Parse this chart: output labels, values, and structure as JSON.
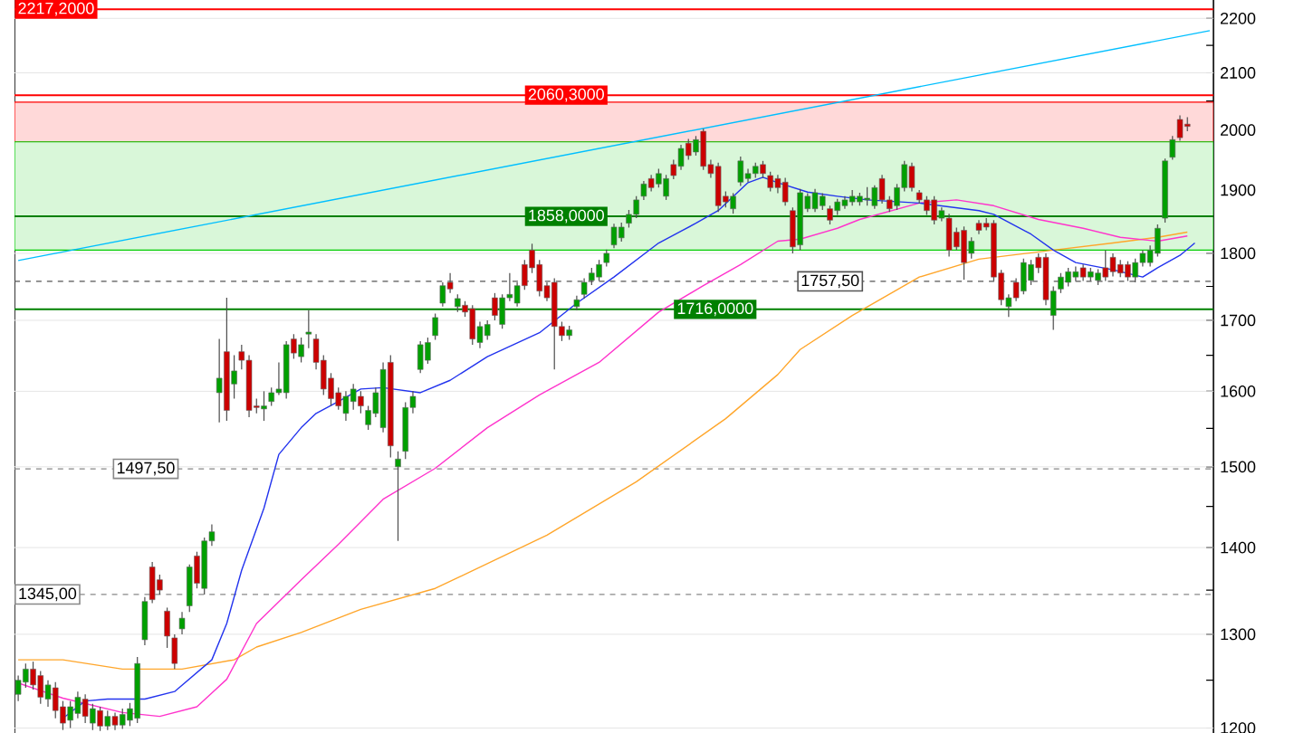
{
  "chart_data": {
    "type": "candlestick",
    "categories": [
      null,
      null,
      null,
      null,
      null,
      null,
      null,
      null,
      null,
      null,
      null,
      null,
      null,
      null,
      null,
      null,
      null,
      null,
      null,
      null,
      null,
      null,
      null,
      null,
      null,
      null,
      null,
      null,
      null,
      null,
      null,
      null,
      null,
      null,
      null,
      null,
      null,
      null,
      null,
      null,
      null,
      null,
      null,
      null,
      null,
      null,
      null,
      null,
      null,
      null,
      null,
      null,
      null,
      null,
      null,
      null,
      null,
      null,
      null,
      null,
      null,
      null,
      null,
      null,
      null,
      null,
      null,
      null,
      null,
      null,
      null,
      null,
      null,
      null,
      null,
      null,
      null,
      null,
      null,
      null,
      null,
      null,
      null,
      null,
      null,
      null,
      null,
      null,
      null,
      null,
      null,
      null,
      null,
      null,
      null,
      null,
      null,
      null,
      null,
      null,
      null,
      null,
      null,
      null,
      null,
      null,
      null,
      null,
      null,
      null,
      null,
      null,
      null,
      null,
      null,
      null,
      null,
      null,
      null,
      null,
      null,
      null,
      null,
      null,
      null,
      null,
      null,
      null,
      null,
      null,
      null,
      null,
      null,
      null,
      null,
      null,
      null,
      null,
      null,
      null,
      null,
      null,
      null,
      null,
      null,
      null,
      null,
      null,
      null,
      null,
      null,
      null,
      null,
      null,
      null,
      null,
      null,
      null,
      null,
      null,
      null
    ],
    "ohlc": [
      [
        1235,
        1255,
        1228,
        1250
      ],
      [
        1248,
        1268,
        1242,
        1262
      ],
      [
        1262,
        1270,
        1240,
        1245
      ],
      [
        1255,
        1260,
        1225,
        1232
      ],
      [
        1230,
        1250,
        1222,
        1245
      ],
      [
        1242,
        1248,
        1210,
        1218
      ],
      [
        1222,
        1228,
        1198,
        1205
      ],
      [
        1208,
        1228,
        1200,
        1222
      ],
      [
        1215,
        1238,
        1210,
        1232
      ],
      [
        1230,
        1235,
        1205,
        1212
      ],
      [
        1205,
        1225,
        1198,
        1220
      ],
      [
        1218,
        1222,
        1197,
        1202
      ],
      [
        1202,
        1218,
        1198,
        1212
      ],
      [
        1212,
        1216,
        1198,
        1203
      ],
      [
        1203,
        1220,
        1199,
        1214
      ],
      [
        1208,
        1226,
        1202,
        1220
      ],
      [
        1210,
        1275,
        1205,
        1268
      ],
      [
        1294,
        1342,
        1288,
        1337
      ],
      [
        1377,
        1383,
        1335,
        1339
      ],
      [
        1362,
        1368,
        1345,
        1350
      ],
      [
        1326,
        1330,
        1285,
        1298
      ],
      [
        1296,
        1300,
        1262,
        1268
      ],
      [
        1306,
        1325,
        1300,
        1318
      ],
      [
        1332,
        1380,
        1325,
        1377
      ],
      [
        1390,
        1395,
        1352,
        1358
      ],
      [
        1352,
        1412,
        1345,
        1408
      ],
      [
        1408,
        1428,
        1402,
        1419
      ],
      [
        1598,
        1673,
        1558,
        1618
      ],
      [
        1655,
        1733,
        1560,
        1574
      ],
      [
        1610,
        1650,
        1590,
        1628
      ],
      [
        1655,
        1665,
        1630,
        1643
      ],
      [
        1643,
        1650,
        1565,
        1574
      ],
      [
        1580,
        1590,
        1570,
        1578
      ],
      [
        1576,
        1600,
        1560,
        1580
      ],
      [
        1586,
        1605,
        1580,
        1598
      ],
      [
        1598,
        1640,
        1595,
        1603
      ],
      [
        1598,
        1670,
        1590,
        1665
      ],
      [
        1673,
        1680,
        1645,
        1653
      ],
      [
        1648,
        1675,
        1640,
        1665
      ],
      [
        1680,
        1715,
        1660,
        1683
      ],
      [
        1673,
        1680,
        1630,
        1640
      ],
      [
        1643,
        1650,
        1595,
        1603
      ],
      [
        1618,
        1625,
        1580,
        1590
      ],
      [
        1598,
        1605,
        1575,
        1580
      ],
      [
        1570,
        1600,
        1560,
        1593
      ],
      [
        1586,
        1610,
        1575,
        1603
      ],
      [
        1593,
        1600,
        1570,
        1580
      ],
      [
        1555,
        1580,
        1548,
        1574
      ],
      [
        1570,
        1605,
        1565,
        1598
      ],
      [
        1551,
        1640,
        1545,
        1630
      ],
      [
        1640,
        1650,
        1512,
        1527
      ],
      [
        1500,
        1520,
        1408,
        1510
      ],
      [
        1520,
        1585,
        1510,
        1578
      ],
      [
        1578,
        1600,
        1570,
        1593
      ],
      [
        1630,
        1670,
        1625,
        1665
      ],
      [
        1643,
        1675,
        1638,
        1668
      ],
      [
        1678,
        1710,
        1672,
        1704
      ],
      [
        1725,
        1756,
        1720,
        1751
      ],
      [
        1756,
        1770,
        1740,
        1746
      ],
      [
        1720,
        1738,
        1712,
        1732
      ],
      [
        1722,
        1728,
        1705,
        1712
      ],
      [
        1717,
        1722,
        1665,
        1673
      ],
      [
        1668,
        1698,
        1660,
        1691
      ],
      [
        1678,
        1700,
        1672,
        1694
      ],
      [
        1733,
        1740,
        1700,
        1707
      ],
      [
        1694,
        1738,
        1688,
        1733
      ],
      [
        1733,
        1770,
        1728,
        1738
      ],
      [
        1725,
        1756,
        1720,
        1751
      ],
      [
        1783,
        1790,
        1745,
        1751
      ],
      [
        1805,
        1815,
        1770,
        1778
      ],
      [
        1783,
        1790,
        1735,
        1743
      ],
      [
        1751,
        1756,
        1728,
        1733
      ],
      [
        1756,
        1762,
        1630,
        1691
      ],
      [
        1691,
        1698,
        1670,
        1678
      ],
      [
        1678,
        1692,
        1672,
        1686
      ],
      [
        1720,
        1736,
        1715,
        1730
      ],
      [
        1738,
        1762,
        1732,
        1756
      ],
      [
        1759,
        1778,
        1752,
        1770
      ],
      [
        1764,
        1790,
        1758,
        1783
      ],
      [
        1786,
        1806,
        1780,
        1800
      ],
      [
        1813,
        1846,
        1808,
        1841
      ],
      [
        1824,
        1848,
        1818,
        1841
      ],
      [
        1847,
        1868,
        1840,
        1861
      ],
      [
        1861,
        1890,
        1855,
        1884
      ],
      [
        1890,
        1915,
        1884,
        1910
      ],
      [
        1919,
        1925,
        1898,
        1904
      ],
      [
        1910,
        1935,
        1904,
        1927
      ],
      [
        1890,
        1925,
        1884,
        1919
      ],
      [
        1942,
        1950,
        1918,
        1924
      ],
      [
        1939,
        1975,
        1933,
        1969
      ],
      [
        1978,
        1985,
        1950,
        1957
      ],
      [
        1963,
        1990,
        1957,
        1984
      ],
      [
        1998,
        2002,
        1933,
        1939
      ],
      [
        1942,
        1950,
        1920,
        1927
      ],
      [
        1939,
        1945,
        1865,
        1875
      ],
      [
        1890,
        1898,
        1872,
        1881
      ],
      [
        1870,
        1895,
        1862,
        1890
      ],
      [
        1913,
        1955,
        1907,
        1948
      ],
      [
        1919,
        1935,
        1913,
        1927
      ],
      [
        1927,
        1945,
        1920,
        1939
      ],
      [
        1942,
        1948,
        1920,
        1927
      ],
      [
        1924,
        1930,
        1898,
        1904
      ],
      [
        1919,
        1925,
        1895,
        1904
      ],
      [
        1913,
        1920,
        1875,
        1881
      ],
      [
        1867,
        1872,
        1800,
        1810
      ],
      [
        1813,
        1902,
        1805,
        1896
      ],
      [
        1870,
        1895,
        1865,
        1890
      ],
      [
        1870,
        1902,
        1865,
        1896
      ],
      [
        1875,
        1895,
        1868,
        1890
      ],
      [
        1870,
        1875,
        1845,
        1852
      ],
      [
        1867,
        1886,
        1860,
        1881
      ],
      [
        1875,
        1890,
        1870,
        1884
      ],
      [
        1881,
        1900,
        1875,
        1890
      ],
      [
        1881,
        1896,
        1875,
        1890
      ],
      [
        1884,
        1905,
        1875,
        1887
      ],
      [
        1875,
        1908,
        1870,
        1904
      ],
      [
        1919,
        1925,
        1878,
        1884
      ],
      [
        1884,
        1890,
        1865,
        1870
      ],
      [
        1875,
        1910,
        1868,
        1904
      ],
      [
        1904,
        1948,
        1898,
        1942
      ],
      [
        1939,
        1945,
        1898,
        1904
      ],
      [
        1896,
        1900,
        1878,
        1884
      ],
      [
        1884,
        1890,
        1860,
        1867
      ],
      [
        1884,
        1890,
        1845,
        1852
      ],
      [
        1855,
        1872,
        1850,
        1867
      ],
      [
        1855,
        1862,
        1795,
        1805
      ],
      [
        1833,
        1840,
        1805,
        1810
      ],
      [
        1836,
        1842,
        1760,
        1786
      ],
      [
        1800,
        1825,
        1792,
        1819
      ],
      [
        1847,
        1852,
        1830,
        1836
      ],
      [
        1847,
        1855,
        1836,
        1841
      ],
      [
        1847,
        1852,
        1758,
        1764
      ],
      [
        1770,
        1775,
        1722,
        1730
      ],
      [
        1720,
        1738,
        1705,
        1733
      ],
      [
        1756,
        1762,
        1728,
        1733
      ],
      [
        1743,
        1792,
        1738,
        1786
      ],
      [
        1759,
        1790,
        1752,
        1783
      ],
      [
        1794,
        1800,
        1770,
        1778
      ],
      [
        1794,
        1800,
        1722,
        1730
      ],
      [
        1707,
        1750,
        1686,
        1743
      ],
      [
        1746,
        1770,
        1740,
        1764
      ],
      [
        1756,
        1778,
        1750,
        1772
      ],
      [
        1764,
        1780,
        1758,
        1772
      ],
      [
        1778,
        1783,
        1758,
        1764
      ],
      [
        1764,
        1778,
        1758,
        1772
      ],
      [
        1759,
        1776,
        1752,
        1770
      ],
      [
        1778,
        1805,
        1758,
        1764
      ],
      [
        1794,
        1800,
        1765,
        1772
      ],
      [
        1783,
        1790,
        1764,
        1770
      ],
      [
        1783,
        1788,
        1758,
        1764
      ],
      [
        1764,
        1792,
        1756,
        1786
      ],
      [
        1786,
        1805,
        1780,
        1800
      ],
      [
        1786,
        1812,
        1780,
        1805
      ],
      [
        1800,
        1845,
        1795,
        1839
      ],
      [
        1855,
        1952,
        1848,
        1948
      ],
      [
        1954,
        1990,
        1950,
        1984
      ],
      [
        2018,
        2025,
        1982,
        1987
      ],
      [
        2010,
        2022,
        1998,
        2006
      ],
      null,
      null,
      null
    ],
    "series": [
      {
        "type": "line",
        "color": "#00bfff",
        "values": [
          1789,
          null,
          null,
          null,
          null,
          null,
          null,
          null,
          null,
          null,
          null,
          null,
          null,
          null,
          null,
          null,
          null,
          null,
          null,
          null,
          null,
          null,
          null,
          null,
          null,
          null,
          null,
          null,
          null,
          null,
          null,
          null,
          null,
          null,
          null,
          null,
          null,
          null,
          null,
          null,
          null,
          null,
          null,
          null,
          null,
          null,
          null,
          null,
          null,
          null,
          null,
          null,
          null,
          null,
          null,
          null,
          null,
          null,
          null,
          null,
          null,
          null,
          null,
          null,
          null,
          null,
          null,
          null,
          null,
          null,
          null,
          null,
          null,
          null,
          null,
          null,
          null,
          null,
          null,
          null,
          null,
          null,
          null,
          null,
          null,
          null,
          null,
          null,
          null,
          null,
          null,
          null,
          null,
          null,
          null,
          null,
          null,
          null,
          null,
          null,
          null,
          null,
          null,
          null,
          null,
          null,
          null,
          null,
          null,
          null,
          null,
          null,
          null,
          null,
          null,
          null,
          null,
          null,
          null,
          null,
          null,
          null,
          null,
          null,
          null,
          null,
          null,
          null,
          null,
          null,
          null,
          null,
          null,
          null,
          null,
          null,
          null,
          null,
          null,
          null,
          null,
          null,
          null,
          null,
          null,
          null,
          null,
          null,
          null,
          null,
          null,
          null,
          null,
          null,
          null,
          null,
          null,
          null,
          null,
          null,
          2177
        ]
      },
      {
        "type": "line",
        "color": "#ffa62b",
        "values": [
          1272,
          null,
          null,
          null,
          null,
          null,
          1272,
          null,
          null,
          null,
          null,
          null,
          null,
          null,
          1262,
          null,
          null,
          null,
          null,
          null,
          null,
          null,
          1262,
          null,
          null,
          null,
          null,
          null,
          null,
          1272,
          null,
          null,
          1286,
          null,
          null,
          null,
          null,
          null,
          1302,
          null,
          null,
          null,
          null,
          null,
          null,
          null,
          1328,
          null,
          null,
          null,
          null,
          null,
          null,
          null,
          null,
          null,
          1352,
          null,
          null,
          null,
          null,
          null,
          null,
          null,
          null,
          null,
          null,
          null,
          null,
          null,
          null,
          1415,
          null,
          null,
          null,
          null,
          null,
          null,
          null,
          null,
          null,
          null,
          null,
          1481,
          null,
          null,
          null,
          null,
          null,
          null,
          null,
          null,
          null,
          null,
          null,
          1563,
          null,
          null,
          null,
          null,
          null,
          null,
          1623,
          null,
          null,
          1658,
          null,
          null,
          null,
          null,
          null,
          null,
          1707,
          null,
          null,
          null,
          null,
          null,
          null,
          null,
          null,
          1764,
          null,
          null,
          null,
          null,
          null,
          null,
          null,
          1791,
          null,
          null,
          null,
          null,
          null,
          null,
          null,
          null,
          null,
          1805,
          null,
          null,
          null,
          null,
          null,
          null,
          null,
          1816,
          null,
          null,
          null,
          null,
          null,
          1825,
          null,
          null,
          null,
          1833,
          null,
          null,
          null
        ]
      },
      {
        "type": "line",
        "color": "#ff33cc",
        "values": [
          1247,
          null,
          null,
          null,
          null,
          null,
          1231,
          null,
          null,
          null,
          null,
          null,
          null,
          null,
          1216,
          null,
          null,
          null,
          null,
          1212,
          null,
          null,
          null,
          null,
          1222,
          null,
          null,
          null,
          1251,
          null,
          null,
          null,
          1312,
          null,
          null,
          null,
          null,
          null,
          1362,
          null,
          null,
          null,
          null,
          1404,
          null,
          null,
          null,
          null,
          null,
          1459,
          null,
          null,
          null,
          null,
          null,
          null,
          1498,
          null,
          null,
          null,
          null,
          null,
          null,
          1551,
          null,
          null,
          null,
          null,
          null,
          null,
          1595,
          null,
          null,
          null,
          null,
          null,
          null,
          null,
          1640,
          null,
          null,
          null,
          null,
          null,
          null,
          null,
          1712,
          null,
          null,
          null,
          null,
          null,
          1751,
          null,
          null,
          null,
          null,
          1783,
          null,
          null,
          null,
          null,
          1819,
          null,
          null,
          1822,
          null,
          null,
          null,
          null,
          1839,
          null,
          null,
          1853,
          null,
          null,
          null,
          null,
          null,
          null,
          null,
          1879,
          null,
          null,
          null,
          null,
          1884,
          null,
          null,
          null,
          null,
          1875,
          null,
          null,
          null,
          null,
          null,
          1853,
          null,
          null,
          null,
          null,
          null,
          1839,
          null,
          null,
          null,
          null,
          1825,
          null,
          null,
          null,
          null,
          1819,
          null,
          null,
          null,
          1827,
          null,
          null,
          null
        ]
      },
      {
        "type": "line",
        "color": "#2233ee",
        "values": [
          null,
          null,
          null,
          null,
          null,
          null,
          1210,
          null,
          null,
          1228,
          null,
          null,
          1230,
          null,
          null,
          null,
          null,
          1230,
          null,
          null,
          null,
          1238,
          null,
          null,
          null,
          null,
          1272,
          null,
          1312,
          null,
          1373,
          null,
          null,
          1448,
          null,
          1516,
          null,
          null,
          1551,
          null,
          1570,
          null,
          null,
          1586,
          null,
          null,
          1603,
          null,
          null,
          1605,
          null,
          null,
          null,
          null,
          1598,
          null,
          null,
          null,
          1615,
          null,
          null,
          null,
          null,
          1648,
          null,
          null,
          null,
          null,
          null,
          null,
          1682,
          null,
          null,
          null,
          null,
          1725,
          null,
          null,
          null,
          null,
          1764,
          null,
          null,
          null,
          null,
          null,
          1816,
          null,
          null,
          null,
          null,
          1847,
          null,
          null,
          1867,
          null,
          null,
          null,
          1912,
          null,
          1921,
          null,
          1912,
          null,
          null,
          null,
          1897,
          null,
          null,
          null,
          1890,
          null,
          null,
          null,
          1884,
          null,
          null,
          null,
          null,
          null,
          null,
          1879,
          null,
          null,
          null,
          null,
          null,
          null,
          null,
          1867,
          null,
          1861,
          null,
          null,
          null,
          null,
          1830,
          null,
          null,
          1805,
          null,
          null,
          1786,
          null,
          null,
          null,
          null,
          1775,
          null,
          null,
          null,
          1764,
          null,
          1778,
          null,
          null,
          1797,
          null,
          1816,
          null,
          null
        ]
      }
    ],
    "ref_lines": [
      {
        "axis": "y",
        "value": 2217.2,
        "label": "2217,2000",
        "color": "#ff0000",
        "line_style": "solid"
      },
      {
        "axis": "y",
        "value": 2060.3,
        "label": "2060,3000",
        "color": "#ff0000",
        "line_style": "solid"
      },
      {
        "axis": "y",
        "value": 1858,
        "label": "1858,0000",
        "color": "#008000",
        "line_style": "solid"
      },
      {
        "axis": "y",
        "value": 1716,
        "label": "1716,0000",
        "color": "#008000",
        "line_style": "solid"
      },
      {
        "axis": "y",
        "value": 1757.5,
        "label": "1757,50",
        "color": "#555555",
        "line_style": "dashed"
      },
      {
        "axis": "y",
        "value": 1497.5,
        "label": "1497,50",
        "color": "#888888",
        "line_style": "dashed"
      },
      {
        "axis": "y",
        "value": 1345,
        "label": "1345,00",
        "color": "#888888",
        "line_style": "dashed"
      }
    ],
    "bands": [
      {
        "axis": "y",
        "from": 1980,
        "to": 2048,
        "color": "#ff0000"
      },
      {
        "axis": "y",
        "from": 1805,
        "to": 1980,
        "color": "#00cc00"
      }
    ],
    "ylim": [
      1195,
      2235
    ],
    "yticks": [
      1200,
      {
        "value": 1250,
        "label": null
      },
      1300,
      {
        "value": 1350,
        "label": null
      },
      1400,
      {
        "value": 1450,
        "label": null
      },
      1500,
      {
        "value": 1550,
        "label": null
      },
      1600,
      {
        "value": 1650,
        "label": null
      },
      1700,
      {
        "value": 1750,
        "label": null
      },
      1800,
      {
        "value": 1850,
        "label": null
      },
      1900,
      {
        "value": 1950,
        "label": null
      },
      2000,
      {
        "value": 2050,
        "label": null
      },
      2100,
      {
        "value": 2150,
        "label": null
      },
      2200
    ],
    "log": "y",
    "grid": "y",
    "tick_labels": "y"
  }
}
